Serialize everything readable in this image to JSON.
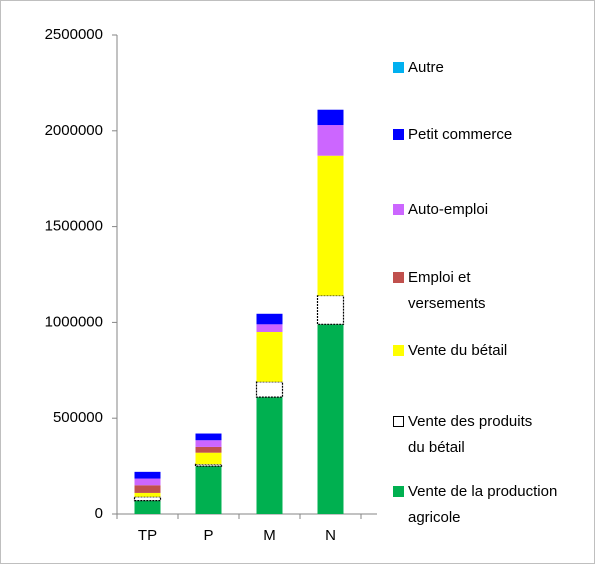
{
  "chart_data": {
    "type": "stacked_bar",
    "categories": [
      "TP",
      "P",
      "M",
      "N"
    ],
    "ylim": [
      0,
      2500000
    ],
    "yticks": [
      0,
      500000,
      1000000,
      1500000,
      2000000,
      2500000
    ],
    "series": [
      {
        "name": "Vente de la production agricole",
        "color": "#00b050",
        "values": [
          70000,
          250000,
          610000,
          990000
        ]
      },
      {
        "name": "Vente des produits du bétail",
        "color": "#ffffff",
        "values": [
          20000,
          10000,
          80000,
          150000
        ]
      },
      {
        "name": "Vente du bétail",
        "color": "#ffff00",
        "values": [
          20000,
          60000,
          260000,
          730000
        ]
      },
      {
        "name": "Emploi et versements",
        "color": "#c0504d",
        "values": [
          40000,
          30000,
          0,
          0
        ]
      },
      {
        "name": "Auto-emploi",
        "color": "#cc66ff",
        "values": [
          35000,
          35000,
          40000,
          160000
        ]
      },
      {
        "name": "Petit commerce",
        "color": "#0000ff",
        "values": [
          35000,
          35000,
          55000,
          80000
        ]
      },
      {
        "name": "Autre",
        "color": "#00b0f0",
        "values": [
          0,
          0,
          0,
          0
        ]
      }
    ]
  }
}
